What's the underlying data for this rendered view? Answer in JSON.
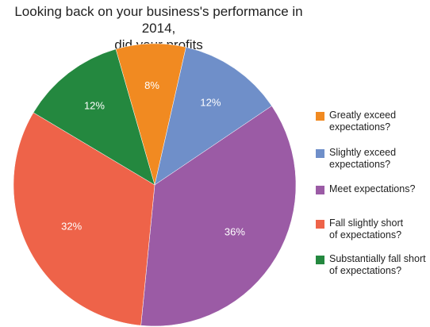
{
  "chart_data": {
    "type": "pie",
    "title_lines": [
      "Looking back on your business's performance in 2014,",
      "did your profits"
    ],
    "slices": [
      {
        "label_lines": [
          "Greatly exceed",
          "expectations?"
        ],
        "value": 8,
        "value_label": "8%",
        "color": "#f18a21"
      },
      {
        "label_lines": [
          "Slightly exceed",
          "expectations?"
        ],
        "value": 12,
        "value_label": "12%",
        "color": "#6f8fc9"
      },
      {
        "label_lines": [
          "Meet expectations?"
        ],
        "value": 36,
        "value_label": "36%",
        "color": "#9b5ba5"
      },
      {
        "label_lines": [
          "Fall slightly short",
          "of expectations?"
        ],
        "value": 32,
        "value_label": "32%",
        "color": "#ee6349"
      },
      {
        "label_lines": [
          "Substantially fall short",
          "of expectations?"
        ],
        "value": 12,
        "value_label": "12%",
        "color": "#24883f"
      }
    ],
    "legend_position": "right",
    "start_angle_deg": -16,
    "direction": "clockwise"
  }
}
